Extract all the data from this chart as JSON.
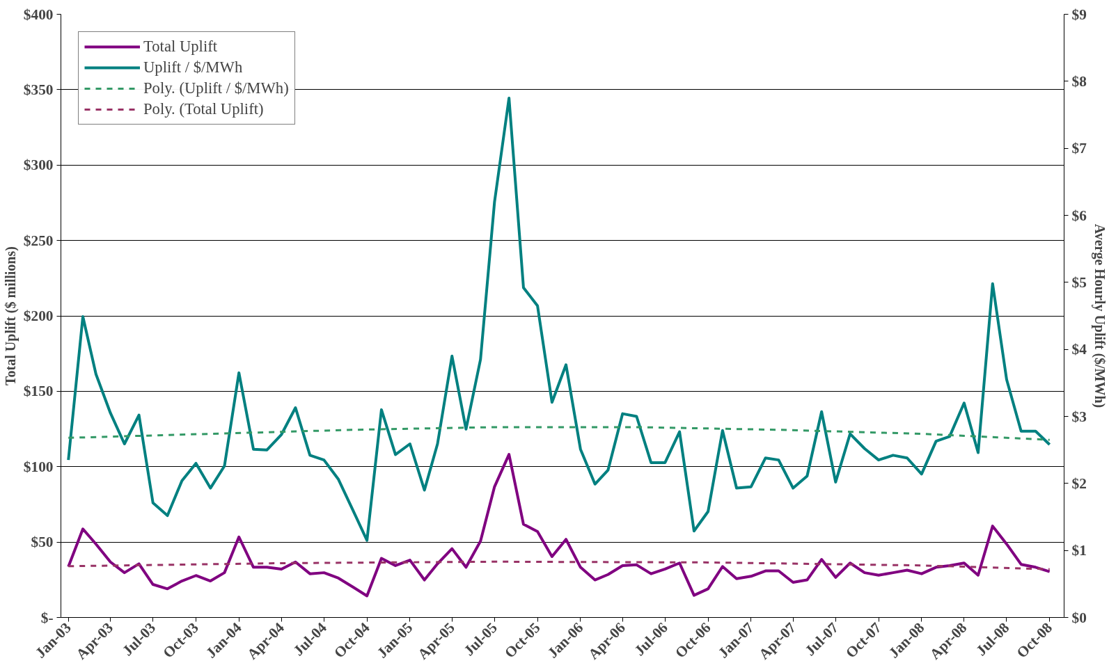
{
  "chart_data": {
    "type": "line",
    "ylabel": "Total Uplift ($ millions)",
    "y2label": "Averge Hourly Uplift ($/MWh)",
    "x": [
      "2003-01",
      "2003-02",
      "2003-03",
      "2003-04",
      "2003-05",
      "2003-06",
      "2003-07",
      "2003-08",
      "2003-09",
      "2003-10",
      "2003-11",
      "2003-12",
      "2004-01",
      "2004-02",
      "2004-03",
      "2004-04",
      "2004-05",
      "2004-06",
      "2004-07",
      "2004-08",
      "2004-09",
      "2004-10",
      "2004-11",
      "2004-12",
      "2005-01",
      "2005-02",
      "2005-03",
      "2005-04",
      "2005-05",
      "2005-06",
      "2005-07",
      "2005-08",
      "2005-09",
      "2005-10",
      "2005-11",
      "2005-12",
      "2006-01",
      "2006-02",
      "2006-03",
      "2006-04",
      "2006-05",
      "2006-06",
      "2006-07",
      "2006-08",
      "2006-09",
      "2006-10",
      "2006-11",
      "2006-12",
      "2007-01",
      "2007-02",
      "2007-03",
      "2007-04",
      "2007-05",
      "2007-06",
      "2007-07",
      "2007-08",
      "2007-09",
      "2007-10",
      "2007-11",
      "2007-12",
      "2008-01",
      "2008-02",
      "2008-03",
      "2008-04",
      "2008-05",
      "2008-06",
      "2008-07",
      "2008-08",
      "2008-09",
      "2008-10"
    ],
    "series": [
      {
        "name": "Total Uplift",
        "color": "#800080",
        "line_style": "solid",
        "values": [
          33.7,
          58.7,
          48.7,
          36.8,
          29.7,
          35.6,
          21.9,
          19,
          24.2,
          27.8,
          24.2,
          29.7,
          53.4,
          33.3,
          33.3,
          32.1,
          36.8,
          29,
          29.7,
          26.1,
          20.2,
          14.3,
          39.2,
          34.4,
          38,
          24.9,
          35.6,
          45.6,
          33.3,
          50.6,
          86.7,
          108.1,
          61.8,
          57,
          40.4,
          51.8,
          33.3,
          24.9,
          28.5,
          34.4,
          34.9,
          29,
          32.1,
          36.1,
          14.7,
          19,
          33.8,
          25.7,
          27.3,
          30.9,
          30.9,
          23.3,
          24.9,
          38.5,
          26.6,
          36.1,
          29.7,
          28,
          29.7,
          31.4,
          29,
          33.3,
          34.4,
          36.1,
          28,
          60.6,
          48.7,
          35.2,
          33.3,
          30.4
        ]
      },
      {
        "name": "Uplift / $/MWh",
        "color": "#008080",
        "axis": "y2",
        "line_style": "solid",
        "values": [
          2.35,
          4.49,
          3.63,
          3.05,
          2.59,
          3.02,
          1.71,
          1.52,
          2.04,
          2.3,
          1.93,
          2.26,
          3.65,
          2.51,
          2.5,
          2.73,
          3.13,
          2.42,
          2.35,
          2.06,
          1.6,
          1.15,
          3.1,
          2.43,
          2.59,
          1.9,
          2.59,
          3.9,
          2.81,
          3.85,
          6.2,
          7.75,
          4.92,
          4.65,
          3.21,
          3.77,
          2.51,
          1.99,
          2.2,
          3.04,
          3.0,
          2.31,
          2.31,
          2.77,
          1.29,
          1.58,
          2.79,
          1.93,
          1.95,
          2.38,
          2.35,
          1.93,
          2.11,
          3.07,
          2.02,
          2.74,
          2.52,
          2.35,
          2.42,
          2.38,
          2.14,
          2.63,
          2.7,
          3.2,
          2.46,
          4.98,
          3.55,
          2.78,
          2.78,
          2.58
        ]
      },
      {
        "name": "Poly. (Uplift / $/MWh)",
        "color": "#339966",
        "axis": "y2",
        "line_style": "dashed",
        "x": [
          "2003-01",
          "2003-11",
          "2004-09",
          "2005-07",
          "2006-05",
          "2007-03",
          "2008-01",
          "2008-10"
        ],
        "values": [
          2.68,
          2.74,
          2.8,
          2.84,
          2.84,
          2.8,
          2.74,
          2.65
        ]
      },
      {
        "name": "Poly. (Total Uplift)",
        "color": "#993366",
        "line_style": "dashed",
        "x": [
          "2003-01",
          "2004-04",
          "2005-07",
          "2006-10",
          "2008-01",
          "2008-10"
        ],
        "values": [
          34,
          36,
          37,
          36.5,
          34.5,
          32
        ]
      }
    ],
    "xlim": [
      "2002-12-16",
      "2008-11-01"
    ],
    "xticks": [
      {
        "value": "2003-01",
        "label": "Jan-03"
      },
      {
        "value": "2003-04",
        "label": "Apr-03"
      },
      {
        "value": "2003-07",
        "label": "Jul-03"
      },
      {
        "value": "2003-10",
        "label": "Oct-03"
      },
      {
        "value": "2004-01",
        "label": "Jan-04"
      },
      {
        "value": "2004-04",
        "label": "Apr-04"
      },
      {
        "value": "2004-07",
        "label": "Jul-04"
      },
      {
        "value": "2004-10",
        "label": "Oct-04"
      },
      {
        "value": "2005-01",
        "label": "Jan-05"
      },
      {
        "value": "2005-04",
        "label": "Apr-05"
      },
      {
        "value": "2005-07",
        "label": "Jul-05"
      },
      {
        "value": "2005-10",
        "label": "Oct-05"
      },
      {
        "value": "2006-01",
        "label": "Jan-06"
      },
      {
        "value": "2006-04",
        "label": "Apr-06"
      },
      {
        "value": "2006-07",
        "label": "Jul-06"
      },
      {
        "value": "2006-10",
        "label": "Oct-06"
      },
      {
        "value": "2007-01",
        "label": "Jan-07"
      },
      {
        "value": "2007-04",
        "label": "Apr-07"
      },
      {
        "value": "2007-07",
        "label": "Jul-07"
      },
      {
        "value": "2007-10",
        "label": "Oct-07"
      },
      {
        "value": "2008-01",
        "label": "Jan-08"
      },
      {
        "value": "2008-04",
        "label": "Apr-08"
      },
      {
        "value": "2008-07",
        "label": "Jul-08"
      },
      {
        "value": "2008-10",
        "label": "Oct-08"
      }
    ],
    "ylim": [
      0,
      400
    ],
    "yticks": [
      {
        "value": 0,
        "label": "$-"
      },
      {
        "value": 50,
        "label": "$50"
      },
      {
        "value": 100,
        "label": "$100"
      },
      {
        "value": 150,
        "label": "$150"
      },
      {
        "value": 200,
        "label": "$200"
      },
      {
        "value": 250,
        "label": "$250"
      },
      {
        "value": 300,
        "label": "$300"
      },
      {
        "value": 350,
        "label": "$350"
      },
      {
        "value": 400,
        "label": "$400"
      }
    ],
    "y2lim": [
      0,
      9
    ],
    "y2ticks": [
      {
        "value": 0,
        "label": "$0"
      },
      {
        "value": 1,
        "label": "$1"
      },
      {
        "value": 2,
        "label": "$2"
      },
      {
        "value": 3,
        "label": "$3"
      },
      {
        "value": 4,
        "label": "$4"
      },
      {
        "value": 5,
        "label": "$5"
      },
      {
        "value": 6,
        "label": "$6"
      },
      {
        "value": 7,
        "label": "$7"
      },
      {
        "value": 8,
        "label": "$8"
      },
      {
        "value": 9,
        "label": "$9"
      }
    ],
    "grid": "y",
    "legend": "top left"
  }
}
